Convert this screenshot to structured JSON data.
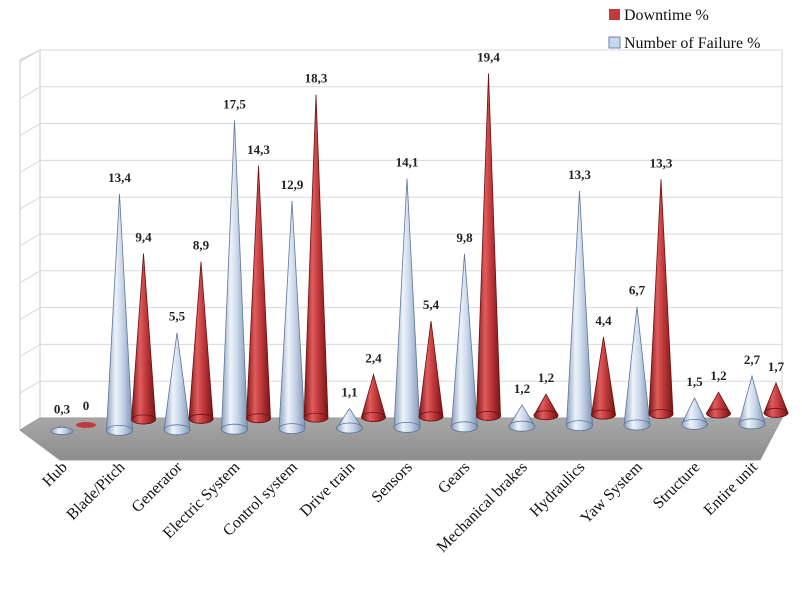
{
  "chart_data": {
    "type": "bar",
    "categories": [
      "Hub",
      "Blade/Pitch",
      "Generator",
      "Electric System",
      "Control system",
      "Drive train",
      "Sensors",
      "Gears",
      "Mechanical brakes",
      "Hydraulics",
      "Yaw System",
      "Structure",
      "Entire unit"
    ],
    "series": [
      {
        "name": "Number of Failure %",
        "values": [
          0.3,
          13.4,
          5.5,
          17.5,
          12.9,
          1.1,
          14.1,
          9.8,
          1.2,
          13.3,
          6.7,
          1.5,
          2.7
        ],
        "labels": [
          "0,3",
          "13,4",
          "5,5",
          "17,5",
          "12,9",
          "1,1",
          "14,1",
          "9,8",
          "1,2",
          "13,3",
          "6,7",
          "1,5",
          "2,7"
        ],
        "color": "#c9d7ea"
      },
      {
        "name": "Downtime %",
        "values": [
          0,
          9.4,
          8.9,
          14.3,
          18.3,
          2.4,
          5.4,
          19.4,
          1.2,
          4.4,
          13.3,
          1.2,
          1.7
        ],
        "labels": [
          "0",
          "9,4",
          "8,9",
          "14,3",
          "18,3",
          "2,4",
          "5,4",
          "19,4",
          "1,2",
          "4,4",
          "13,3",
          "1,2",
          "1,7"
        ],
        "color": "#c0393b"
      }
    ],
    "ylim": [
      0,
      20
    ],
    "grid": true,
    "legend": "top-right"
  }
}
